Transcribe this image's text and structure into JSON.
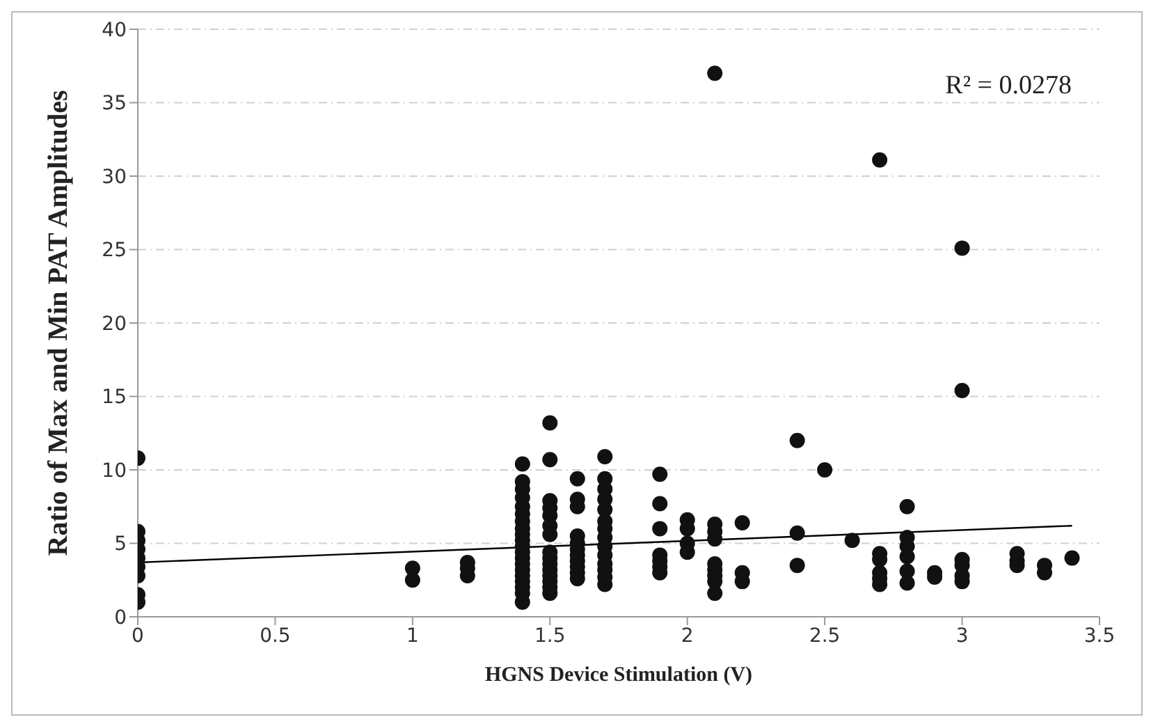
{
  "chart_data": {
    "type": "scatter",
    "xlabel": "HGNS Device Stimulation (V)",
    "ylabel": "Ratio of Max and Min PAT Amplitudes",
    "xlim": [
      0,
      3.5
    ],
    "xticks": [
      0,
      0.5,
      1,
      1.5,
      2,
      2.5,
      3,
      3.5
    ],
    "ylim": [
      0,
      40
    ],
    "yticks": [
      0,
      5,
      10,
      15,
      20,
      25,
      30,
      35,
      40
    ],
    "grid": "y",
    "marker": "circle",
    "annotations": [
      "R² = 0.0278"
    ],
    "series": [
      {
        "color": "#111111",
        "x": [
          0,
          0,
          0,
          0,
          0,
          0,
          0,
          0,
          0,
          1,
          1,
          1.2,
          1.2,
          1.2,
          1.4,
          1.4,
          1.4,
          1.4,
          1.4,
          1.4,
          1.4,
          1.4,
          1.4,
          1.4,
          1.4,
          1.4,
          1.4,
          1.4,
          1.4,
          1.4,
          1.4,
          1.4,
          1.4,
          1.4,
          1.5,
          1.5,
          1.5,
          1.5,
          1.5,
          1.5,
          1.5,
          1.5,
          1.5,
          1.5,
          1.5,
          1.5,
          1.5,
          1.5,
          1.5,
          1.6,
          1.6,
          1.6,
          1.6,
          1.6,
          1.6,
          1.6,
          1.6,
          1.6,
          1.6,
          1.6,
          1.7,
          1.7,
          1.7,
          1.7,
          1.7,
          1.7,
          1.7,
          1.7,
          1.7,
          1.7,
          1.7,
          1.7,
          1.7,
          1.7,
          1.9,
          1.9,
          1.9,
          1.9,
          1.9,
          1.9,
          1.9,
          2,
          2,
          2,
          2,
          2.1,
          2.1,
          2.1,
          2.1,
          2.1,
          2.1,
          2.1,
          2.1,
          2.1,
          2.2,
          2.2,
          2.2,
          2.4,
          2.4,
          2.4,
          2.5,
          2.6,
          2.7,
          2.7,
          2.7,
          2.7,
          2.7,
          2.7,
          2.8,
          2.8,
          2.8,
          2.8,
          2.8,
          2.8,
          2.9,
          2.9,
          3,
          3,
          3,
          3,
          3,
          3,
          3.2,
          3.2,
          3.2,
          3.3,
          3.3,
          3.4
        ],
        "values": [
          10.8,
          5.8,
          5.2,
          4.6,
          4.0,
          3.4,
          2.8,
          1.5,
          1.0,
          3.3,
          2.5,
          3.7,
          3.3,
          2.8,
          10.4,
          9.2,
          8.7,
          8.1,
          7.5,
          7.0,
          6.5,
          6.0,
          5.6,
          5.2,
          4.8,
          4.4,
          4.0,
          3.6,
          3.2,
          2.8,
          2.4,
          2.0,
          1.6,
          1.0,
          13.2,
          10.7,
          7.9,
          7.4,
          6.9,
          6.2,
          5.6,
          4.4,
          4.0,
          3.6,
          3.2,
          2.8,
          2.4,
          2.0,
          1.6,
          9.4,
          8.0,
          7.5,
          5.5,
          5.0,
          4.6,
          4.2,
          3.8,
          3.4,
          3.0,
          2.6,
          10.9,
          9.4,
          8.7,
          8.0,
          7.3,
          6.5,
          6.0,
          5.4,
          4.8,
          4.2,
          3.6,
          3.2,
          2.7,
          2.2,
          9.7,
          7.7,
          6.0,
          4.2,
          3.8,
          3.4,
          3.0,
          6.6,
          6.0,
          5.0,
          4.4,
          37.0,
          6.3,
          5.8,
          5.3,
          3.6,
          3.2,
          2.8,
          2.4,
          1.6,
          6.4,
          3.0,
          2.4,
          12.0,
          5.7,
          3.5,
          10.0,
          5.2,
          31.1,
          4.3,
          3.9,
          3.0,
          2.6,
          2.2,
          7.5,
          5.4,
          4.8,
          4.1,
          3.1,
          2.3,
          3.0,
          2.7,
          25.1,
          15.4,
          3.9,
          3.5,
          2.8,
          2.4,
          4.3,
          3.8,
          3.5,
          3.5,
          3.0,
          4.0
        ]
      },
      {
        "type": "line",
        "marker": "none",
        "color": "#000000",
        "x": [
          0,
          3.4
        ],
        "values": [
          3.7,
          6.2
        ]
      }
    ]
  }
}
